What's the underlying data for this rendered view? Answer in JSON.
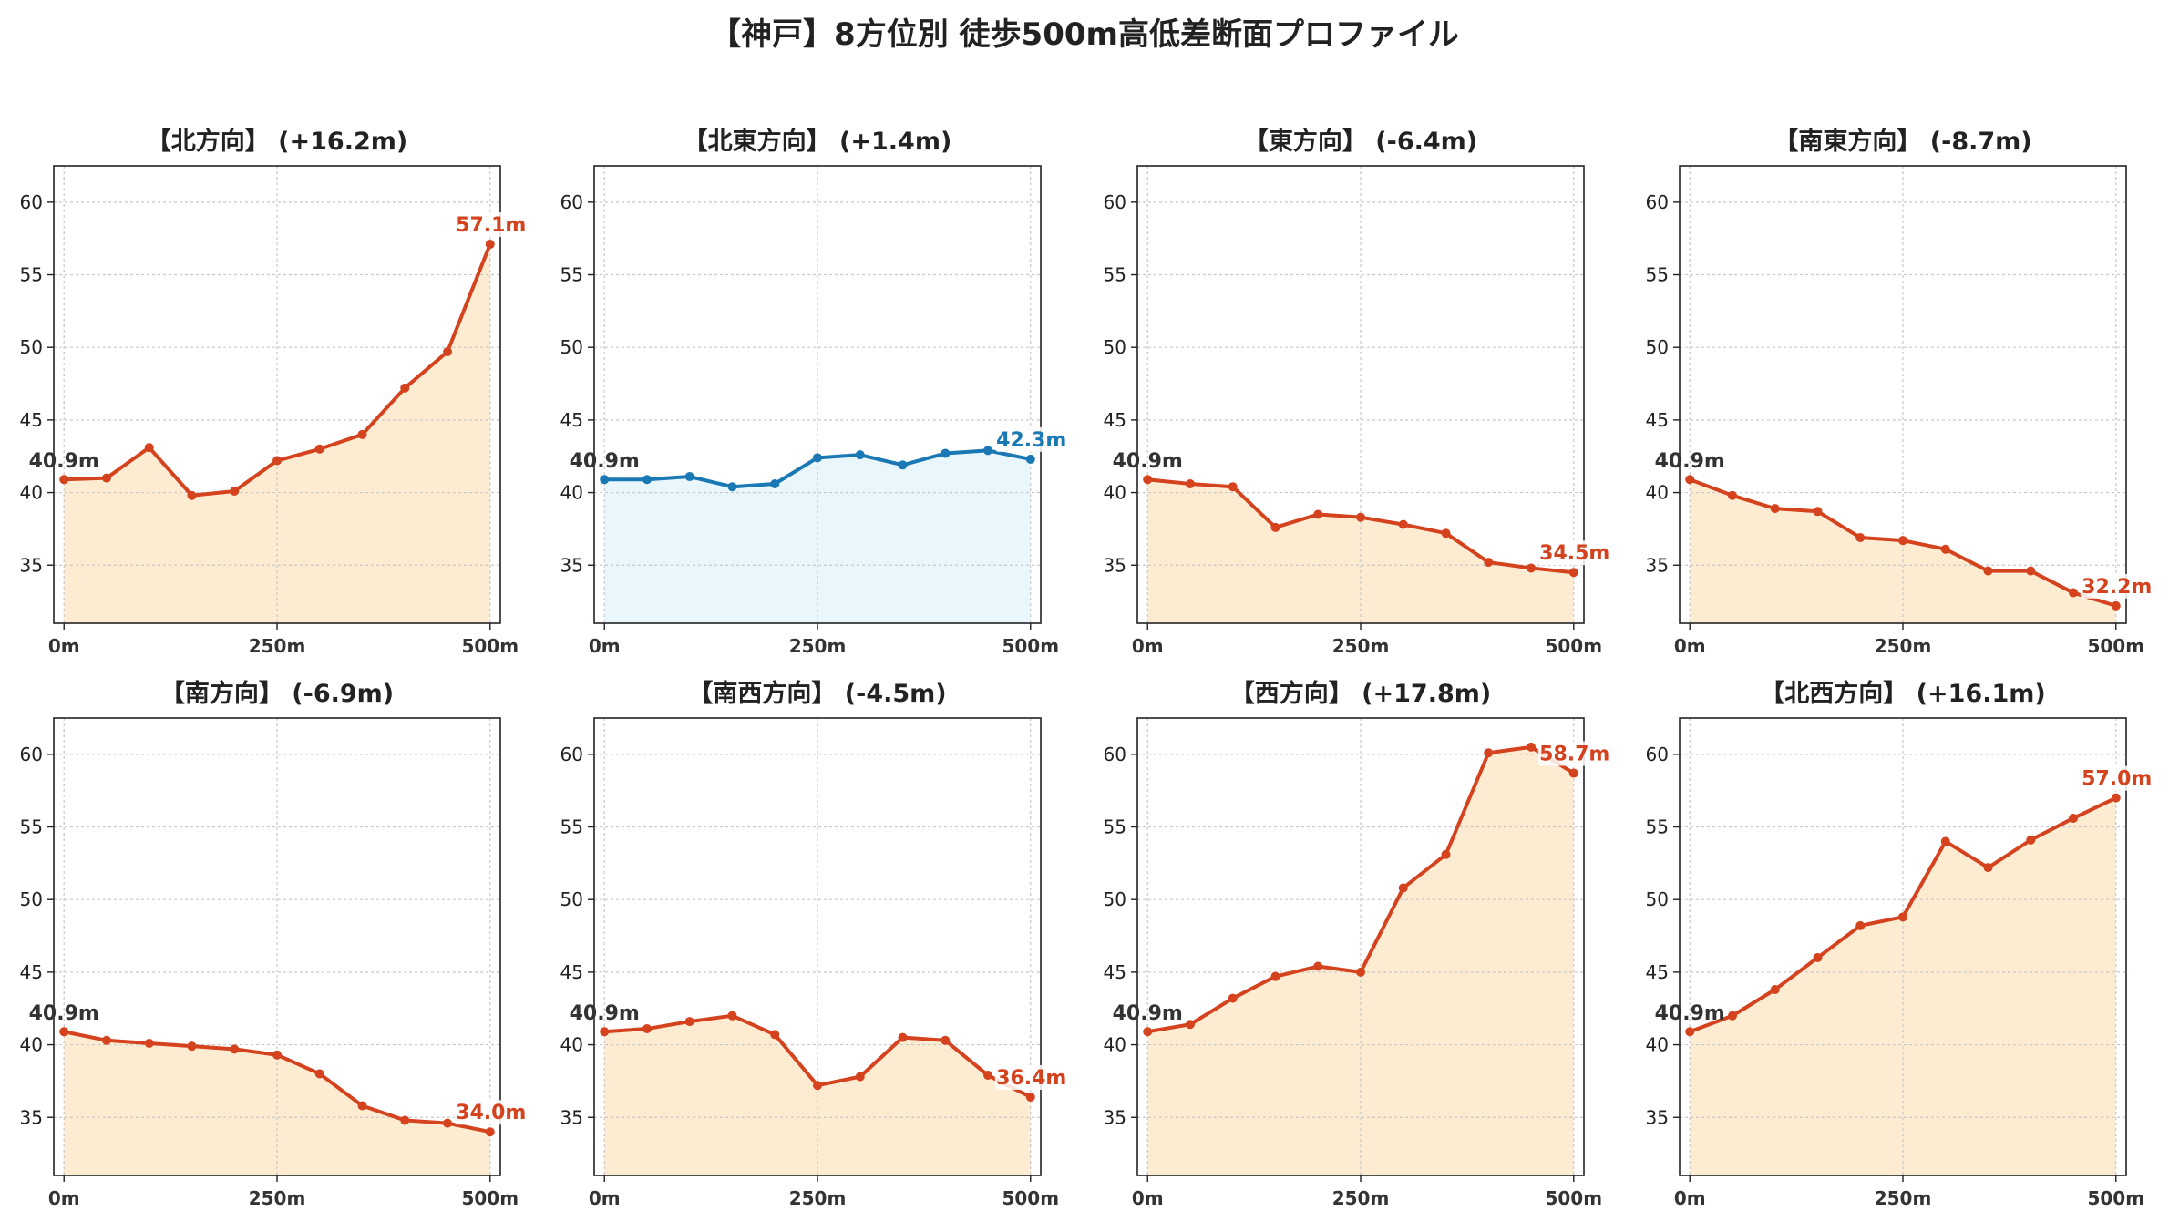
{
  "title": "【神戸】8方位別 徒歩500m高低差断面プロファイル",
  "colors": {
    "up_down_line": "#d4421e",
    "up_down_fill": "#fdecd2",
    "flat_line": "#1a78b4",
    "flat_fill": "#e9f6fb",
    "start_label": "#333333"
  },
  "chart_data": [
    {
      "type": "area",
      "title": "【北方向】 (+16.2m)",
      "x": [
        0,
        50,
        100,
        150,
        200,
        250,
        300,
        350,
        400,
        450,
        500
      ],
      "y": [
        40.9,
        41.0,
        43.1,
        39.8,
        40.1,
        42.2,
        43.0,
        44.0,
        47.2,
        49.7,
        57.1
      ],
      "start_label": "40.9m",
      "end_label": "57.1m",
      "style": "up_down",
      "xticks": [
        "0m",
        "250m",
        "500m"
      ],
      "xlim": [
        -12,
        512
      ],
      "ylim": [
        31,
        62.5
      ],
      "yticks": [
        35,
        40,
        45,
        50,
        55,
        60
      ],
      "grid": true
    },
    {
      "type": "area",
      "title": "【北東方向】 (+1.4m)",
      "x": [
        0,
        50,
        100,
        150,
        200,
        250,
        300,
        350,
        400,
        450,
        500
      ],
      "y": [
        40.9,
        40.9,
        41.1,
        40.4,
        40.6,
        42.4,
        42.6,
        41.9,
        42.7,
        42.9,
        42.3
      ],
      "start_label": "40.9m",
      "end_label": "42.3m",
      "style": "flat",
      "xticks": [
        "0m",
        "250m",
        "500m"
      ],
      "xlim": [
        -12,
        512
      ],
      "ylim": [
        31,
        62.5
      ],
      "yticks": [
        35,
        40,
        45,
        50,
        55,
        60
      ],
      "grid": true
    },
    {
      "type": "area",
      "title": "【東方向】 (-6.4m)",
      "x": [
        0,
        50,
        100,
        150,
        200,
        250,
        300,
        350,
        400,
        450,
        500
      ],
      "y": [
        40.9,
        40.6,
        40.4,
        37.6,
        38.5,
        38.3,
        37.8,
        37.2,
        35.2,
        34.8,
        34.5
      ],
      "start_label": "40.9m",
      "end_label": "34.5m",
      "style": "up_down",
      "xticks": [
        "0m",
        "250m",
        "500m"
      ],
      "xlim": [
        -12,
        512
      ],
      "ylim": [
        31,
        62.5
      ],
      "yticks": [
        35,
        40,
        45,
        50,
        55,
        60
      ],
      "grid": true
    },
    {
      "type": "area",
      "title": "【南東方向】 (-8.7m)",
      "x": [
        0,
        50,
        100,
        150,
        200,
        250,
        300,
        350,
        400,
        450,
        500
      ],
      "y": [
        40.9,
        39.8,
        38.9,
        38.7,
        36.9,
        36.7,
        36.1,
        34.6,
        34.6,
        33.1,
        32.2
      ],
      "start_label": "40.9m",
      "end_label": "32.2m",
      "style": "up_down",
      "xticks": [
        "0m",
        "250m",
        "500m"
      ],
      "xlim": [
        -12,
        512
      ],
      "ylim": [
        31,
        62.5
      ],
      "yticks": [
        35,
        40,
        45,
        50,
        55,
        60
      ],
      "grid": true
    },
    {
      "type": "area",
      "title": "【南方向】 (-6.9m)",
      "x": [
        0,
        50,
        100,
        150,
        200,
        250,
        300,
        350,
        400,
        450,
        500
      ],
      "y": [
        40.9,
        40.3,
        40.1,
        39.9,
        39.7,
        39.3,
        38.0,
        35.8,
        34.8,
        34.6,
        34.0
      ],
      "start_label": "40.9m",
      "end_label": "34.0m",
      "style": "up_down",
      "xticks": [
        "0m",
        "250m",
        "500m"
      ],
      "xlim": [
        -12,
        512
      ],
      "ylim": [
        31,
        62.5
      ],
      "yticks": [
        35,
        40,
        45,
        50,
        55,
        60
      ],
      "grid": true
    },
    {
      "type": "area",
      "title": "【南西方向】 (-4.5m)",
      "x": [
        0,
        50,
        100,
        150,
        200,
        250,
        300,
        350,
        400,
        450,
        500
      ],
      "y": [
        40.9,
        41.1,
        41.6,
        42.0,
        40.7,
        37.2,
        37.8,
        40.5,
        40.3,
        37.9,
        36.4
      ],
      "start_label": "40.9m",
      "end_label": "36.4m",
      "style": "up_down",
      "xticks": [
        "0m",
        "250m",
        "500m"
      ],
      "xlim": [
        -12,
        512
      ],
      "ylim": [
        31,
        62.5
      ],
      "yticks": [
        35,
        40,
        45,
        50,
        55,
        60
      ],
      "grid": true
    },
    {
      "type": "area",
      "title": "【西方向】 (+17.8m)",
      "x": [
        0,
        50,
        100,
        150,
        200,
        250,
        300,
        350,
        400,
        450,
        500
      ],
      "y": [
        40.9,
        41.4,
        43.2,
        44.7,
        45.4,
        45.0,
        50.8,
        53.1,
        60.1,
        60.5,
        58.7
      ],
      "start_label": "40.9m",
      "end_label": "58.7m",
      "style": "up_down",
      "xticks": [
        "0m",
        "250m",
        "500m"
      ],
      "xlim": [
        -12,
        512
      ],
      "ylim": [
        31,
        62.5
      ],
      "yticks": [
        35,
        40,
        45,
        50,
        55,
        60
      ],
      "grid": true
    },
    {
      "type": "area",
      "title": "【北西方向】 (+16.1m)",
      "x": [
        0,
        50,
        100,
        150,
        200,
        250,
        300,
        350,
        400,
        450,
        500
      ],
      "y": [
        40.9,
        42.0,
        43.8,
        46.0,
        48.2,
        48.8,
        54.0,
        52.2,
        54.1,
        55.6,
        57.0
      ],
      "start_label": "40.9m",
      "end_label": "57.0m",
      "style": "up_down",
      "xticks": [
        "0m",
        "250m",
        "500m"
      ],
      "xlim": [
        -12,
        512
      ],
      "ylim": [
        31,
        62.5
      ],
      "yticks": [
        35,
        40,
        45,
        50,
        55,
        60
      ],
      "grid": true
    }
  ]
}
